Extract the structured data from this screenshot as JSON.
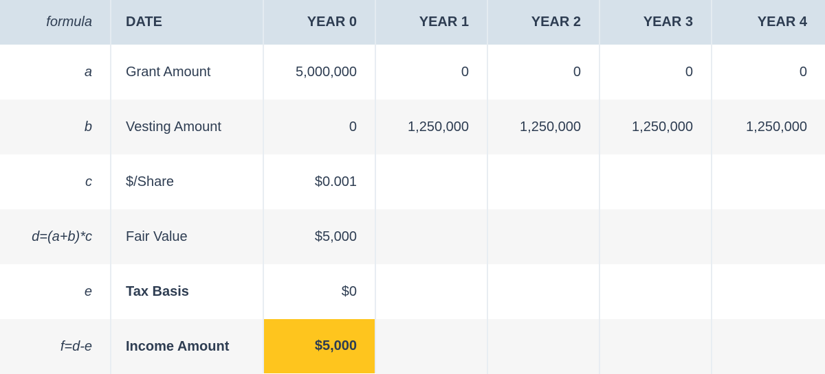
{
  "headers": {
    "formula": "formula",
    "date": "DATE",
    "years": [
      "YEAR 0",
      "YEAR 1",
      "YEAR 2",
      "YEAR 3",
      "YEAR 4"
    ]
  },
  "rows": [
    {
      "formula": "a",
      "label": "Grant Amount",
      "values": [
        "5,000,000",
        "0",
        "0",
        "0",
        "0"
      ]
    },
    {
      "formula": "b",
      "label": "Vesting Amount",
      "values": [
        "0",
        "1,250,000",
        "1,250,000",
        "1,250,000",
        "1,250,000"
      ]
    },
    {
      "formula": "c",
      "label": "$/Share",
      "values": [
        "$0.001",
        "",
        "",
        "",
        ""
      ]
    },
    {
      "formula": "d=(a+b)*c",
      "label": "Fair Value",
      "values": [
        "$5,000",
        "",
        "",
        "",
        ""
      ]
    },
    {
      "formula": "e",
      "label": "Tax Basis",
      "values": [
        "$0",
        "",
        "",
        "",
        ""
      ]
    },
    {
      "formula": "f=d-e",
      "label": "Income Amount",
      "values": [
        "$5,000",
        "",
        "",
        "",
        ""
      ]
    }
  ],
  "highlight_color": "#fec51e"
}
